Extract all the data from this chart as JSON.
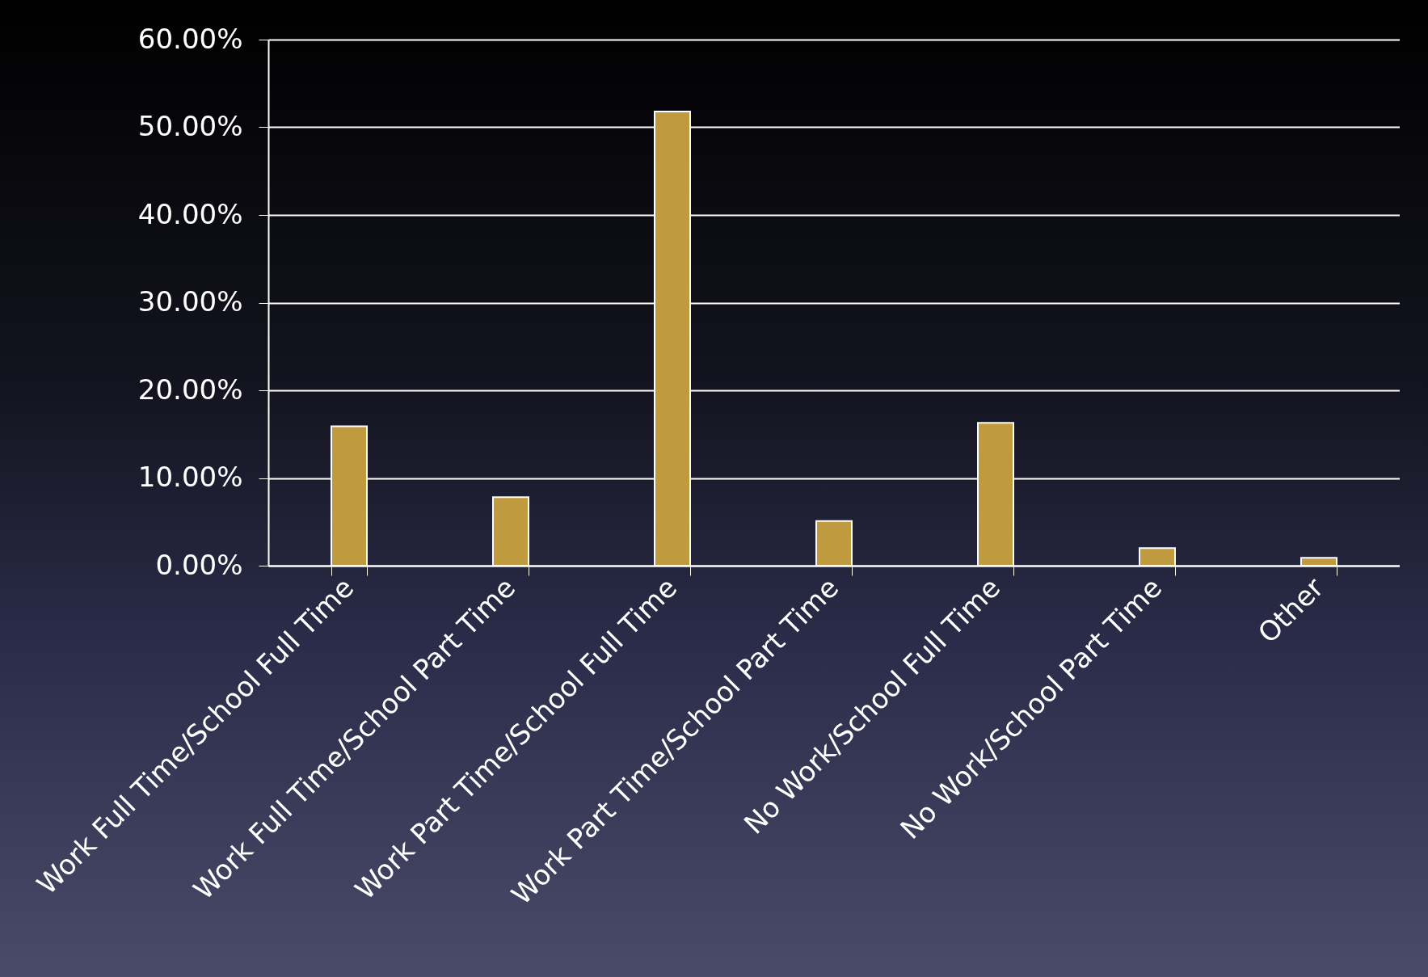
{
  "chart_data": {
    "type": "bar",
    "categories": [
      "Work Full Time/School Full Time",
      "Work Full Time/School Part Time",
      "Work Part Time/School Full Time",
      "Work Part Time/School Part Time",
      "No Work/School Full Time",
      "No Work/School Part Time",
      "Other"
    ],
    "values": [
      15.9,
      7.8,
      51.8,
      5.1,
      16.3,
      2.0,
      0.9
    ],
    "color": "#c09a3e",
    "ylim": [
      0,
      60
    ],
    "yticks": [
      {
        "value": 0,
        "label": "0.00%"
      },
      {
        "value": 10,
        "label": "10.00%"
      },
      {
        "value": 20,
        "label": "20.00%"
      },
      {
        "value": 30,
        "label": "30.00%"
      },
      {
        "value": 40,
        "label": "40.00%"
      },
      {
        "value": 50,
        "label": "50.00%"
      },
      {
        "value": 60,
        "label": "60.00%"
      }
    ],
    "grid": "y"
  }
}
